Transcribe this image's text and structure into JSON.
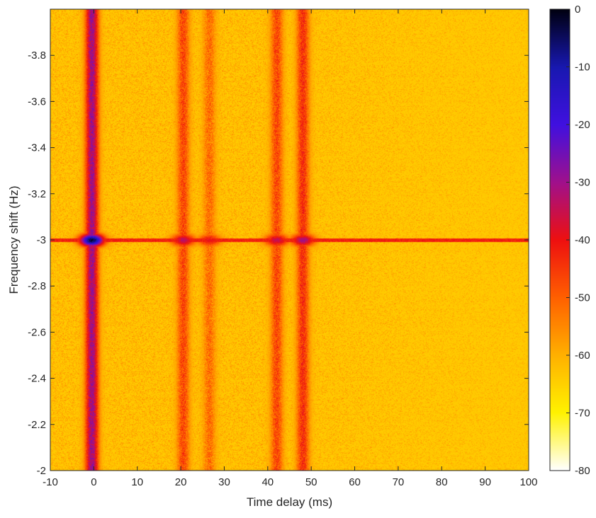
{
  "chart_data": {
    "type": "heatmap",
    "title": "",
    "xlabel": "Time delay (ms)",
    "ylabel": "Frequency shift (Hz)",
    "xlim": [
      -10,
      100
    ],
    "ylim": [
      -4.0,
      -2.0
    ],
    "y_reversed": true,
    "xticks": [
      -10,
      0,
      10,
      20,
      30,
      40,
      50,
      60,
      70,
      80,
      90,
      100
    ],
    "yticks": [
      -3.8,
      -3.6,
      -3.4,
      -3.2,
      -3.0,
      -2.8,
      -2.6,
      -2.4,
      -2.2,
      -2.0
    ],
    "colorbar": {
      "range": [
        -80,
        0
      ],
      "ticks": [
        0,
        -10,
        -20,
        -30,
        -40,
        -50,
        -60,
        -70,
        -80
      ],
      "colormap": "hot-blue",
      "stops": [
        "#ffffff",
        "#fff200",
        "#ffb000",
        "#ff6000",
        "#ee1010",
        "#a0108c",
        "#4010e0",
        "#1818b0",
        "#000010"
      ]
    },
    "background_level": -64,
    "ridges": [
      {
        "delay": -0.5,
        "peak_level": -2,
        "line_level": -30
      },
      {
        "delay": 20.5,
        "peak_level": -33,
        "line_level": -47
      },
      {
        "delay": 26.5,
        "peak_level": -40,
        "line_level": -52
      },
      {
        "delay": 42,
        "peak_level": -34,
        "line_level": -47
      },
      {
        "delay": 48,
        "peak_level": -30,
        "line_level": -44
      }
    ],
    "doppler_line": {
      "frequency": -3.0,
      "level": -42
    }
  }
}
